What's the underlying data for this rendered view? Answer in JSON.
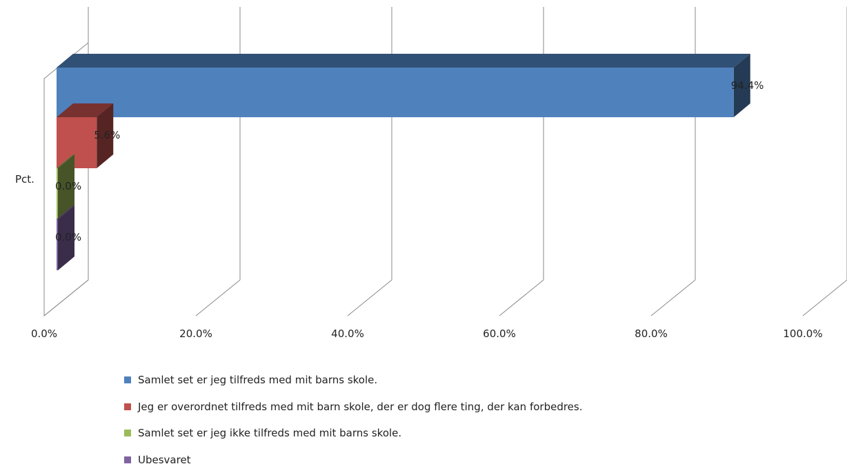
{
  "chart_data": {
    "type": "bar",
    "orientation": "horizontal",
    "style": "3d",
    "categories": [
      "Pct."
    ],
    "series": [
      {
        "name": "Samlet set er jeg tilfreds med mit barns skole.",
        "values": [
          94.4
        ],
        "label": "94.4%",
        "color": "#4f81bd"
      },
      {
        "name": "Jeg er overordnet tilfreds med mit barn skole, der er dog flere ting, der kan forbedres.",
        "values": [
          5.6
        ],
        "label": "5.6%",
        "color": "#c0504d"
      },
      {
        "name": "Samlet set er jeg ikke tilfreds med mit barns skole.",
        "values": [
          0.0
        ],
        "label": "0.0%",
        "color": "#9bbb59"
      },
      {
        "name": "Ubesvaret",
        "values": [
          0.0
        ],
        "label": "0.0%",
        "color": "#8064a2"
      }
    ],
    "x_ticks": [
      "0.0%",
      "20.0%",
      "40.0%",
      "60.0%",
      "80.0%",
      "100.0%"
    ],
    "xlim": [
      0,
      100
    ],
    "ylabel": "Pct.",
    "grid": true,
    "legend_position": "bottom"
  }
}
